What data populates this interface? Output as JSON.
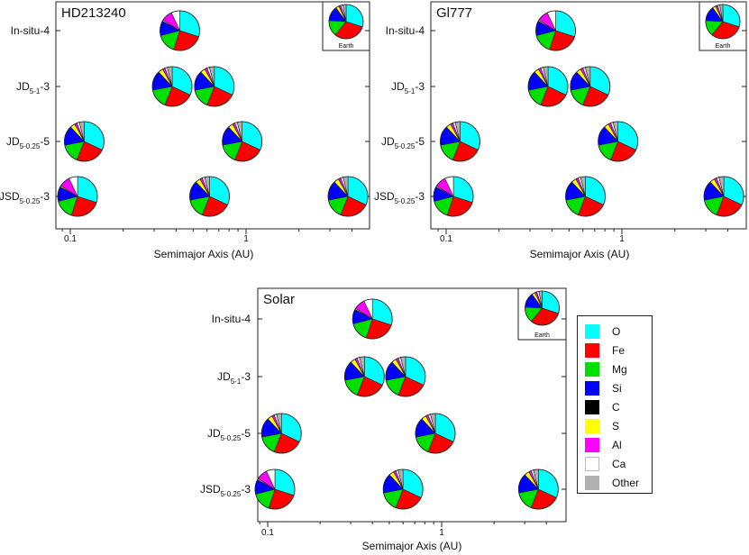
{
  "chart_data": [
    {
      "type": "pie",
      "title": "HD213240",
      "xlabel": "Semimajor Axis (AU)",
      "xscale": "log",
      "xticks": [
        "0.1",
        "1"
      ],
      "rows": [
        "In-situ-4",
        "JD5-1-3",
        "JD5-0.25-5",
        "JSD5-0.25-3"
      ],
      "reference_label": "Earth",
      "pies": [
        {
          "row": 0,
          "a": 0.42,
          "composition": "in-situ"
        },
        {
          "row": 1,
          "a": 0.38,
          "composition": "jd"
        },
        {
          "row": 1,
          "a": 0.66,
          "composition": "jd"
        },
        {
          "row": 2,
          "a": 0.12,
          "composition": "jd"
        },
        {
          "row": 2,
          "a": 0.95,
          "composition": "jd"
        },
        {
          "row": 3,
          "a": 0.11,
          "composition": "jsd-inner"
        },
        {
          "row": 3,
          "a": 0.62,
          "composition": "jd"
        },
        {
          "row": 3,
          "a": 3.8,
          "composition": "jd"
        }
      ]
    },
    {
      "type": "pie",
      "title": "Gl777",
      "xlabel": "Semimajor Axis (AU)",
      "xscale": "log",
      "xticks": [
        "0.1",
        "1"
      ],
      "rows": [
        "In-situ-4",
        "JD5-1-3",
        "JD5-0.25-5",
        "JSD5-0.25-3"
      ],
      "reference_label": "Earth",
      "pies": [
        {
          "row": 0,
          "a": 0.42,
          "composition": "in-situ"
        },
        {
          "row": 1,
          "a": 0.38,
          "composition": "jd"
        },
        {
          "row": 1,
          "a": 0.66,
          "composition": "jd"
        },
        {
          "row": 2,
          "a": 0.12,
          "composition": "jd"
        },
        {
          "row": 2,
          "a": 0.95,
          "composition": "jd"
        },
        {
          "row": 3,
          "a": 0.11,
          "composition": "jsd-inner"
        },
        {
          "row": 3,
          "a": 0.62,
          "composition": "jd"
        },
        {
          "row": 3,
          "a": 3.8,
          "composition": "jd"
        }
      ]
    },
    {
      "type": "pie",
      "title": "Solar",
      "xlabel": "Semimajor Axis (AU)",
      "xscale": "log",
      "xticks": [
        "0.1",
        "1"
      ],
      "rows": [
        "In-situ-4",
        "JD5-1-3",
        "JD5-0.25-5",
        "JSD5-0.25-3"
      ],
      "reference_label": "Earth",
      "pies": [
        {
          "row": 0,
          "a": 0.4,
          "composition": "in-situ"
        },
        {
          "row": 1,
          "a": 0.36,
          "composition": "jd"
        },
        {
          "row": 1,
          "a": 0.62,
          "composition": "jd"
        },
        {
          "row": 2,
          "a": 0.12,
          "composition": "jd"
        },
        {
          "row": 2,
          "a": 0.92,
          "composition": "jd"
        },
        {
          "row": 3,
          "a": 0.11,
          "composition": "jsd-inner"
        },
        {
          "row": 3,
          "a": 0.6,
          "composition": "jd"
        },
        {
          "row": 3,
          "a": 3.6,
          "composition": "jd"
        }
      ]
    }
  ],
  "compositions": {
    "in-situ": [
      30,
      25,
      16,
      12,
      0,
      1,
      9,
      7,
      0
    ],
    "jd": [
      32,
      24,
      16,
      16,
      0,
      4,
      2,
      2,
      4
    ],
    "jsd-inner": [
      30,
      25,
      16,
      12,
      0,
      1,
      9,
      7,
      0
    ],
    "earth": [
      30,
      31,
      15,
      14,
      0,
      3,
      2,
      2,
      3
    ]
  },
  "legend": {
    "elements": [
      "O",
      "Fe",
      "Mg",
      "Si",
      "C",
      "S",
      "Al",
      "Ca",
      "Other"
    ],
    "colors": [
      "#00ffff",
      "#ff0000",
      "#00e000",
      "#0000ff",
      "#000000",
      "#ffff00",
      "#ff00ff",
      "#ffffff",
      "#b0b0b0"
    ]
  }
}
